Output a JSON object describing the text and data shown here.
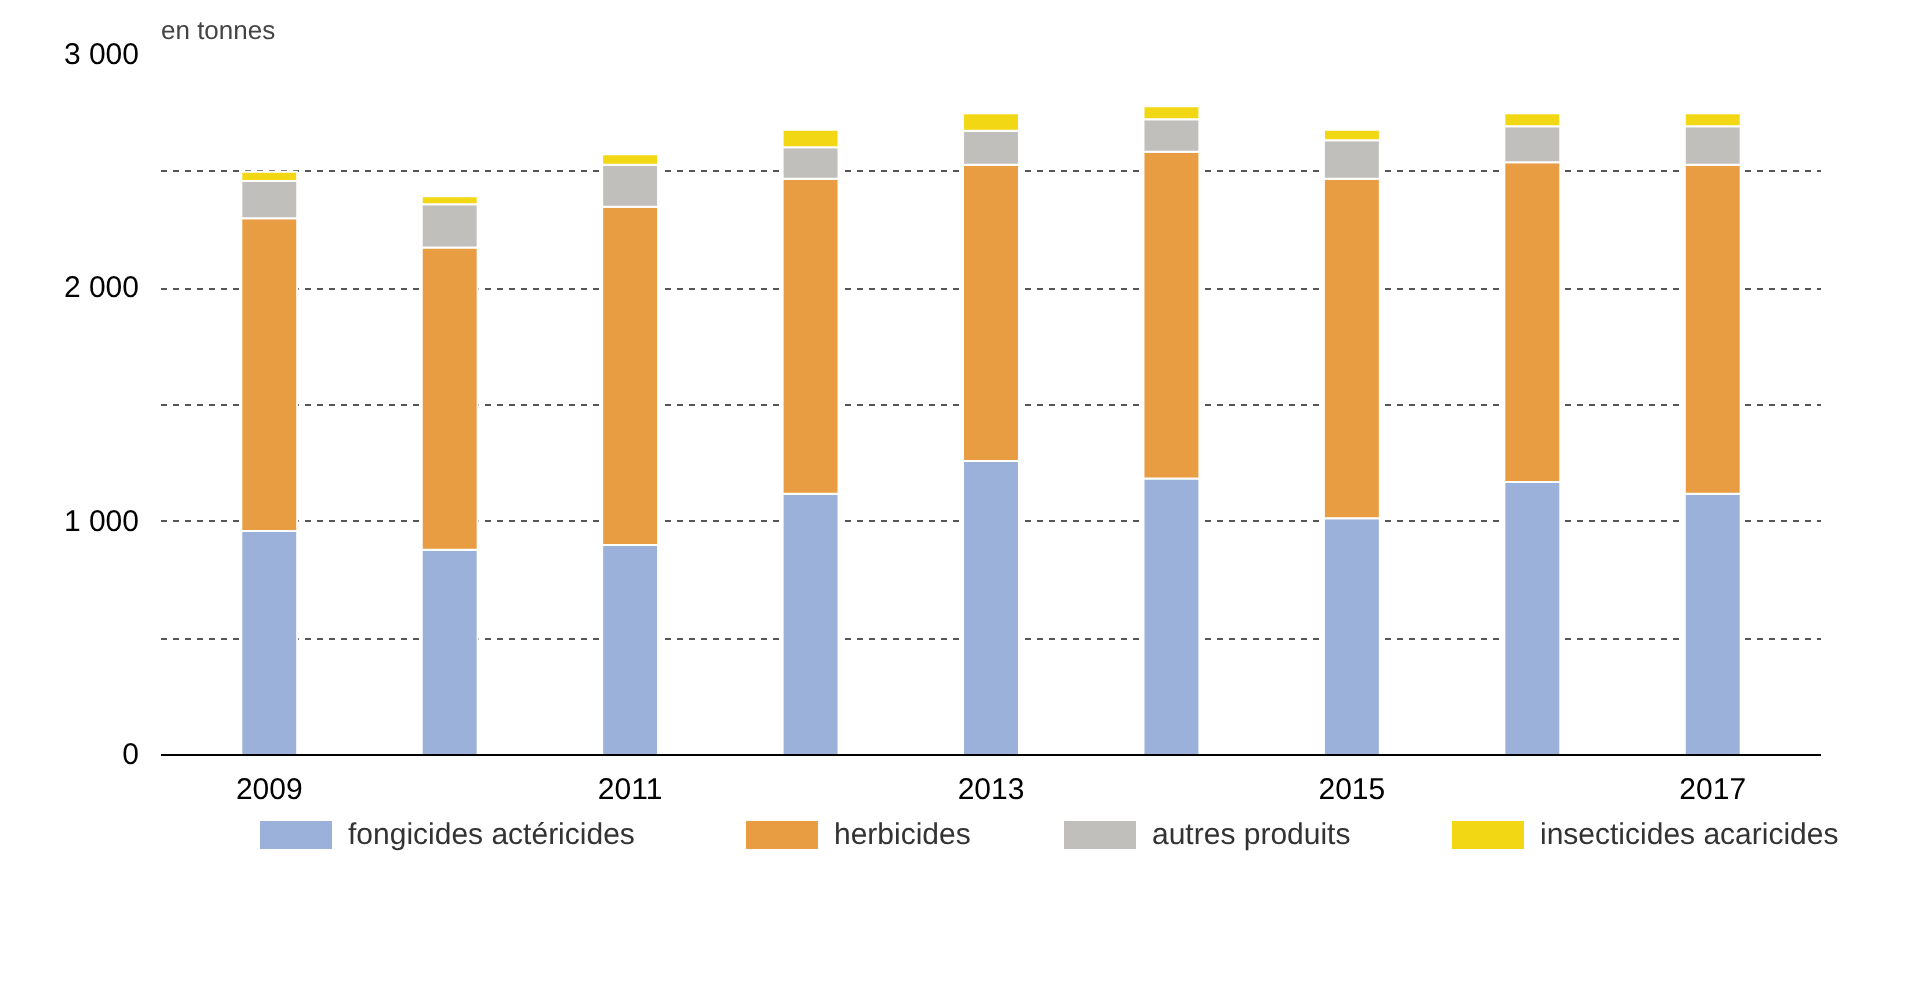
{
  "chart_data": {
    "type": "bar",
    "stacked": true,
    "ylabel": "en tonnes",
    "categories": [
      "2009",
      null,
      "2011",
      null,
      "2013",
      null,
      "2015",
      null,
      "2017"
    ],
    "series": [
      {
        "name": "fongicides actéricides",
        "color": "#9bb1d9",
        "values": [
          960,
          880,
          900,
          1120,
          1260,
          1185,
          1015,
          1170,
          1120
        ]
      },
      {
        "name": "herbicides",
        "color": "#e99d43",
        "values": [
          1340,
          1295,
          1450,
          1350,
          1270,
          1400,
          1455,
          1370,
          1410
        ]
      },
      {
        "name": "autres produits",
        "color": "#c0bfbc",
        "values": [
          160,
          185,
          180,
          135,
          145,
          140,
          165,
          155,
          165
        ]
      },
      {
        "name": "insecticides acaricides",
        "color": "#f2d714",
        "values": [
          40,
          35,
          45,
          75,
          75,
          55,
          45,
          55,
          55
        ]
      }
    ],
    "ylim": [
      0,
      3000
    ],
    "yticks": [
      0,
      {
        "value": 500,
        "label": null
      },
      {
        "value": 1000,
        "label": "1 000"
      },
      {
        "value": 1500,
        "label": null
      },
      {
        "value": 2000,
        "label": "2 000"
      },
      {
        "value": 2500,
        "label": null
      },
      {
        "value": 3000,
        "label": "3 000"
      }
    ],
    "grid": "y",
    "legend": "bottom"
  }
}
